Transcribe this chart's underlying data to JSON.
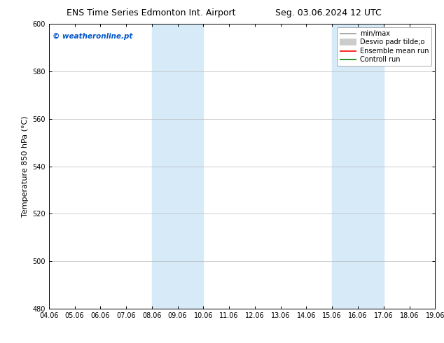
{
  "title_left": "ENS Time Series Edmonton Int. Airport",
  "title_right": "Seg. 03.06.2024 12 UTC",
  "ylabel": "Temperature 850 hPa (°C)",
  "xlabel_ticks": [
    "04.06",
    "05.06",
    "06.06",
    "07.06",
    "08.06",
    "09.06",
    "10.06",
    "11.06",
    "12.06",
    "13.06",
    "14.06",
    "15.06",
    "16.06",
    "17.06",
    "18.06",
    "19.06"
  ],
  "ylim": [
    480,
    600
  ],
  "yticks": [
    480,
    500,
    520,
    540,
    560,
    580,
    600
  ],
  "xlim": [
    0,
    15
  ],
  "shaded_regions": [
    {
      "x_start": 4,
      "x_end": 6,
      "color": "#d6eaf8"
    },
    {
      "x_start": 11,
      "x_end": 13,
      "color": "#d6eaf8"
    }
  ],
  "watermark_text": "© weatheronline.pt",
  "watermark_color": "#0055cc",
  "legend_entries": [
    {
      "label": "min/max",
      "color": "#999999",
      "linewidth": 1.2
    },
    {
      "label": "Desvio padr tilde;o",
      "color": "#cccccc",
      "linewidth": 7
    },
    {
      "label": "Ensemble mean run",
      "color": "red",
      "linewidth": 1.2
    },
    {
      "label": "Controll run",
      "color": "green",
      "linewidth": 1.2
    }
  ],
  "background_color": "#ffffff",
  "grid_color": "#bbbbbb",
  "title_fontsize": 9,
  "tick_fontsize": 7,
  "ylabel_fontsize": 8,
  "legend_fontsize": 7,
  "watermark_fontsize": 7.5
}
